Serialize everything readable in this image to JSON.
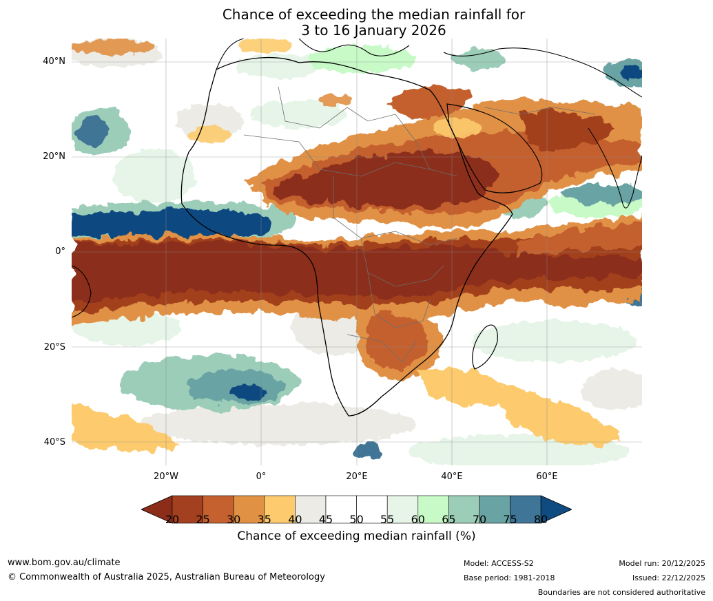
{
  "title": {
    "line1": "Chance of exceeding the median rainfall for",
    "line2": "3 to 16 January 2026"
  },
  "axes": {
    "lat_labels": [
      "40°N",
      "20°N",
      "0°",
      "20°S",
      "40°S"
    ],
    "lon_labels": [
      "20°W",
      "0°",
      "20°E",
      "40°E",
      "60°E"
    ]
  },
  "legend": {
    "ticks": [
      "20",
      "25",
      "30",
      "35",
      "40",
      "45",
      "50",
      "55",
      "60",
      "65",
      "70",
      "75",
      "80"
    ],
    "label": "Chance of exceeding median rainfall (%)",
    "colors": [
      "#8c2d1a",
      "#a3401f",
      "#c4612f",
      "#e09144",
      "#fdcb6e",
      "#ecebe6",
      "#ffffff",
      "#ffffff",
      "#e6f5e8",
      "#c8fac8",
      "#9ccdb9",
      "#6aa3a3",
      "#3f7596",
      "#0f4a80"
    ]
  },
  "footer": {
    "website": "www.bom.gov.au/climate",
    "copyright": "© Commonwealth of Australia 2025, Australian Bureau of Meteorology",
    "model": "Model: ACCESS-S2",
    "base_period": "Base period: 1981-2018",
    "model_run": "Model run: 20/12/2025",
    "issued": "Issued: 22/12/2025",
    "disclaimer": "Boundaries are not considered authoritative"
  }
}
